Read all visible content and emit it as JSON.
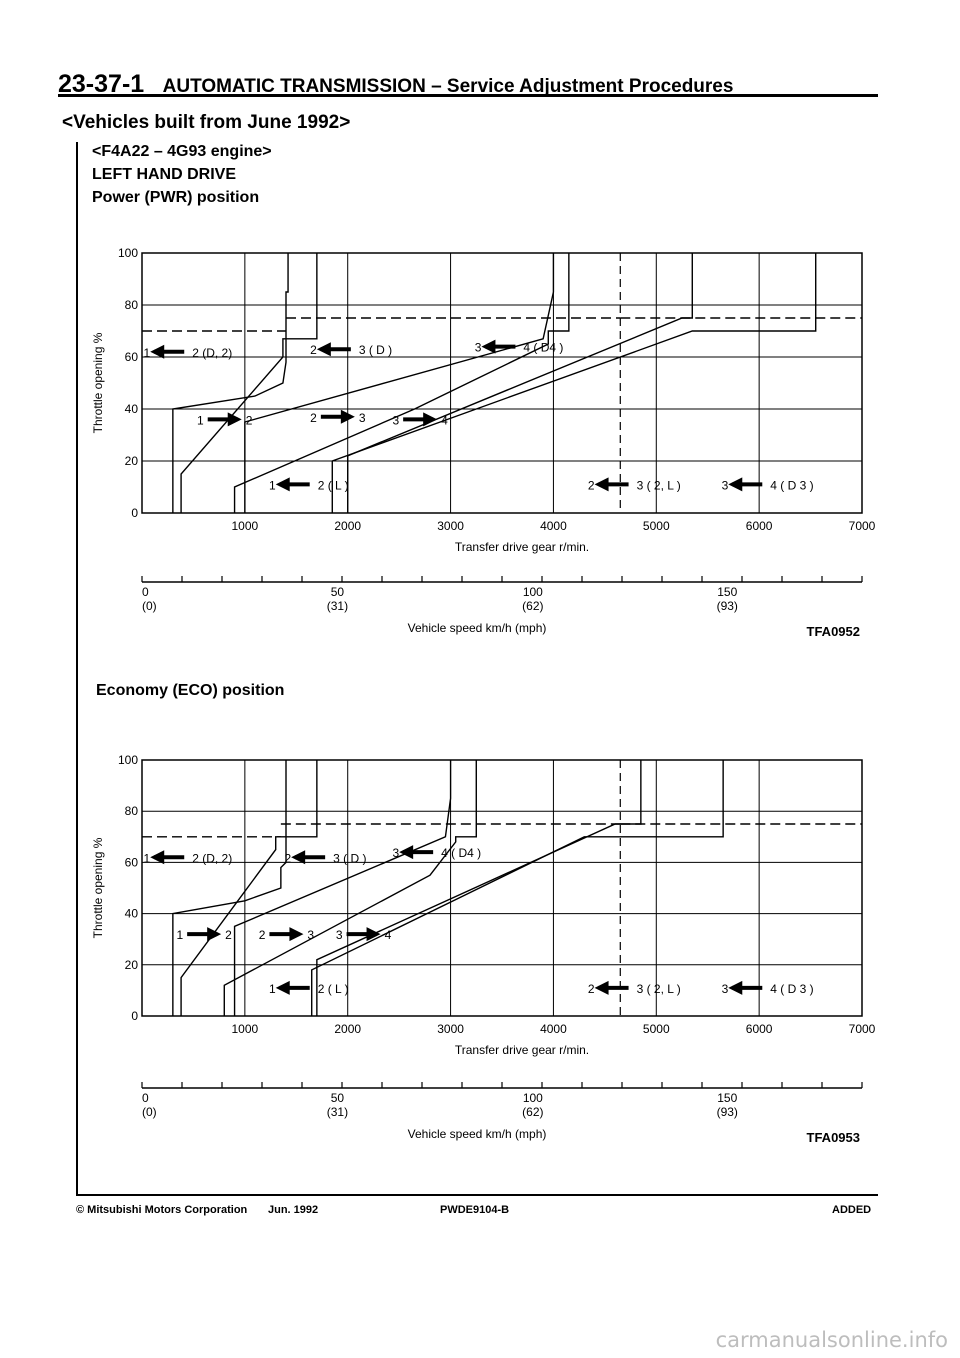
{
  "header": {
    "page_number": "23-37-1",
    "title": "AUTOMATIC TRANSMISSION – Service Adjustment Procedures"
  },
  "section": {
    "heading": "<Vehicles built from June 1992>",
    "engine": "<F4A22 – 4G93 engine>",
    "drive": "LEFT HAND DRIVE",
    "pwr_title": "Power (PWR) position",
    "eco_title": "Economy (ECO) position"
  },
  "chart_data": [
    {
      "type": "line",
      "title": "Power (PWR) position",
      "figure_code": "TFA0952",
      "xlabel": "Transfer drive gear r/min.",
      "ylabel": "Throttle opening %",
      "x_ticks": [
        "1000",
        "2000",
        "3000",
        "4000",
        "5000",
        "6000",
        "7000"
      ],
      "y_ticks": [
        "0",
        "20",
        "40",
        "60",
        "80",
        "100"
      ],
      "xlim": [
        0,
        7000
      ],
      "ylim": [
        0,
        100
      ],
      "speed_axis_label": "Vehicle speed   km/h (mph)",
      "speed_ticks": [
        {
          "kmh": "0",
          "mph": "(0)",
          "rpm": 0
        },
        {
          "kmh": "50",
          "mph": "(31)",
          "rpm": 1900
        },
        {
          "kmh": "100",
          "mph": "(62)",
          "rpm": 3800
        },
        {
          "kmh": "150",
          "mph": "(93)",
          "rpm": 5690
        }
      ],
      "labels": {
        "up12": "1",
        "up12b": "2",
        "up23": "2",
        "up23b": "3",
        "up34": "3",
        "up34b": "4",
        "dn21D": "1",
        "dn21Db": "2 (D, 2)",
        "dn32D": "2",
        "dn32Db": "3 ( D )",
        "dn43D": "3",
        "dn43Db": "4 ( D4 )",
        "dn21L": "1",
        "dn21Lb": "2 ( L )",
        "dn32L": "2",
        "dn32Lb": "3 ( 2, L )",
        "dn43D3": "3",
        "dn43D3b": "4 ( D 3 )"
      },
      "series": [
        {
          "name": "1 → 2",
          "style": "upshift",
          "points": [
            [
              380,
              0
            ],
            [
              380,
              15
            ],
            [
              1370,
              60
            ],
            [
              1370,
              67
            ],
            [
              1700,
              67
            ],
            [
              1700,
              100
            ]
          ]
        },
        {
          "name": "2 → 3",
          "style": "upshift",
          "points": [
            [
              900,
              0
            ],
            [
              900,
              10
            ],
            [
              2650,
              40
            ],
            [
              3950,
              65
            ],
            [
              3950,
              70
            ],
            [
              4150,
              70
            ],
            [
              4150,
              100
            ]
          ]
        },
        {
          "name": "3 → 4",
          "style": "upshift",
          "points": [
            [
              1850,
              0
            ],
            [
              1850,
              20
            ],
            [
              5350,
              70
            ],
            [
              6550,
              70
            ],
            [
              6550,
              100
            ]
          ]
        },
        {
          "name": "1 ← 2 (D, 2)",
          "style": "downshift",
          "points": [
            [
              300,
              0
            ],
            [
              300,
              40
            ],
            [
              1100,
              45
            ],
            [
              1370,
              50
            ],
            [
              1400,
              58
            ],
            [
              1400,
              85
            ],
            [
              1420,
              85
            ],
            [
              1420,
              100
            ]
          ]
        },
        {
          "name": "2 ← 3 (D)",
          "style": "downshift",
          "points": [
            [
              1000,
              0
            ],
            [
              1000,
              35
            ],
            [
              3900,
              67
            ],
            [
              4000,
              85
            ],
            [
              4000,
              100
            ]
          ]
        },
        {
          "name": "3 ← 4 (D4)",
          "style": "downshift",
          "points": [
            [
              2000,
              0
            ],
            [
              2000,
              22
            ],
            [
              5250,
              75
            ],
            [
              5350,
              75
            ],
            [
              5350,
              100
            ]
          ]
        },
        {
          "name": "1 ← 2 (L)",
          "style": "dashed",
          "points": [
            [
              0,
              70
            ],
            [
              1400,
              70
            ]
          ]
        },
        {
          "name": "2 ← 3 (2, L)",
          "style": "dashed",
          "points": [
            [
              1400,
              75
            ],
            [
              4650,
              75
            ]
          ]
        },
        {
          "name": "3 ← 4 (D3)",
          "style": "dashed",
          "points": [
            [
              4650,
              75
            ],
            [
              7000,
              75
            ]
          ]
        }
      ]
    },
    {
      "type": "line",
      "title": "Economy (ECO) position",
      "figure_code": "TFA0953",
      "xlabel": "Transfer drive gear r/min.",
      "ylabel": "Throttle opening %",
      "x_ticks": [
        "1000",
        "2000",
        "3000",
        "4000",
        "5000",
        "6000",
        "7000"
      ],
      "y_ticks": [
        "0",
        "20",
        "40",
        "60",
        "80",
        "100"
      ],
      "xlim": [
        0,
        7000
      ],
      "ylim": [
        0,
        100
      ],
      "speed_axis_label": "Vehicle speed   km/h (mph)",
      "speed_ticks": [
        {
          "kmh": "0",
          "mph": "(0)",
          "rpm": 0
        },
        {
          "kmh": "50",
          "mph": "(31)",
          "rpm": 1900
        },
        {
          "kmh": "100",
          "mph": "(62)",
          "rpm": 3800
        },
        {
          "kmh": "150",
          "mph": "(93)",
          "rpm": 5690
        }
      ],
      "labels": {
        "up12": "1",
        "up12b": "2",
        "up23": "2",
        "up23b": "3",
        "up34": "3",
        "up34b": "4",
        "dn21D": "1",
        "dn21Db": "2 (D, 2)",
        "dn32D": "2",
        "dn32Db": "3 ( D )",
        "dn43D": "3",
        "dn43Db": "4 ( D4 )",
        "dn21L": "1",
        "dn21Lb": "2 ( L )",
        "dn32L": "2",
        "dn32Lb": "3 ( 2, L )",
        "dn43D3": "3",
        "dn43D3b": "4 ( D 3 )"
      },
      "series": [
        {
          "name": "1 → 2",
          "style": "upshift",
          "points": [
            [
              380,
              0
            ],
            [
              380,
              15
            ],
            [
              1300,
              65
            ],
            [
              1300,
              70
            ],
            [
              1700,
              70
            ],
            [
              1700,
              100
            ]
          ]
        },
        {
          "name": "2 → 3",
          "style": "upshift",
          "points": [
            [
              800,
              0
            ],
            [
              800,
              12
            ],
            [
              2800,
              55
            ],
            [
              3050,
              68
            ],
            [
              3050,
              70
            ],
            [
              3250,
              70
            ],
            [
              3250,
              100
            ]
          ]
        },
        {
          "name": "3 → 4",
          "style": "upshift",
          "points": [
            [
              1650,
              0
            ],
            [
              1650,
              18
            ],
            [
              4300,
              70
            ],
            [
              5650,
              70
            ],
            [
              5650,
              100
            ]
          ]
        },
        {
          "name": "1 ← 2 (D, 2)",
          "style": "downshift",
          "points": [
            [
              300,
              0
            ],
            [
              300,
              40
            ],
            [
              1000,
              45
            ],
            [
              1350,
              50
            ],
            [
              1350,
              58
            ],
            [
              1400,
              60
            ],
            [
              1400,
              100
            ]
          ]
        },
        {
          "name": "2 ← 3 (D)",
          "style": "downshift",
          "points": [
            [
              900,
              0
            ],
            [
              900,
              35
            ],
            [
              2950,
              70
            ],
            [
              3000,
              85
            ],
            [
              3000,
              100
            ]
          ]
        },
        {
          "name": "3 ← 4 (D4)",
          "style": "downshift",
          "points": [
            [
              1700,
              0
            ],
            [
              1700,
              22
            ],
            [
              4600,
              75
            ],
            [
              4850,
              75
            ],
            [
              4850,
              100
            ]
          ]
        },
        {
          "name": "1 ← 2 (L)",
          "style": "dashed",
          "points": [
            [
              0,
              70
            ],
            [
              1350,
              70
            ]
          ]
        },
        {
          "name": "2 ← 3 (2, L)",
          "style": "dashed",
          "points": [
            [
              1350,
              75
            ],
            [
              4650,
              75
            ]
          ]
        },
        {
          "name": "3 ← 4 (D3)",
          "style": "dashed",
          "points": [
            [
              4650,
              75
            ],
            [
              7000,
              75
            ]
          ]
        }
      ]
    }
  ],
  "footer": {
    "copyright": "© Mitsubishi Motors Corporation",
    "date": "Jun. 1992",
    "code": "PWDE9104-B",
    "status": "ADDED"
  },
  "watermark": "carmanualsonline.info"
}
